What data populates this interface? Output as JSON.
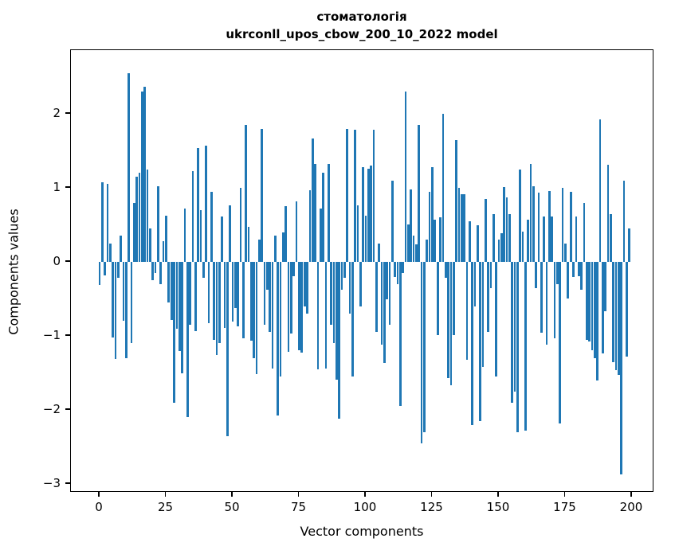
{
  "chart_data": {
    "type": "bar",
    "title_lines": [
      "стоматологія",
      "ukrconll_upos_cbow_200_10_2022 model"
    ],
    "xlabel": "Vector components",
    "ylabel": "Components values",
    "x_ticks": [
      0,
      25,
      50,
      75,
      100,
      125,
      150,
      175,
      200
    ],
    "y_ticks": [
      2,
      1,
      0,
      -1,
      -2,
      -3
    ],
    "xlim": [
      -10.8,
      208.4
    ],
    "ylim": [
      -3.12,
      2.86
    ],
    "grid": false,
    "legend": "none",
    "bar_color": "#1f77b4",
    "n_components": 200,
    "values": [
      -0.31,
      1.07,
      -0.18,
      1.05,
      0.25,
      -1.02,
      -1.31,
      -0.22,
      0.35,
      -0.8,
      -1.3,
      2.55,
      -1.1,
      0.8,
      1.15,
      1.2,
      2.3,
      2.37,
      1.25,
      0.45,
      -0.25,
      -0.15,
      1.02,
      -0.3,
      0.28,
      0.62,
      -0.55,
      -0.78,
      -1.9,
      -0.9,
      -1.2,
      -1.5,
      0.72,
      -2.1,
      -0.85,
      1.23,
      -0.94,
      1.54,
      0.7,
      -0.22,
      1.57,
      -0.83,
      0.95,
      -1.05,
      -1.26,
      -1.1,
      0.61,
      -0.89,
      -2.35,
      0.76,
      -0.81,
      -0.62,
      -0.87,
      1.0,
      -1.03,
      1.85,
      0.47,
      -1.06,
      -1.3,
      -1.52,
      0.3,
      1.8,
      -0.85,
      -0.38,
      -0.95,
      -1.44,
      0.35,
      -2.08,
      -1.55,
      0.4,
      0.75,
      -1.21,
      -0.97,
      -0.19,
      0.82,
      -1.19,
      -1.23,
      -0.6,
      -0.7,
      0.97,
      1.67,
      1.32,
      -1.45,
      0.72,
      1.2,
      -1.44,
      1.32,
      -0.85,
      -1.1,
      -1.59,
      -2.12,
      -0.38,
      -0.22,
      1.8,
      -0.7,
      -1.55,
      1.78,
      0.76,
      -0.6,
      1.28,
      0.62,
      1.26,
      1.3,
      1.78,
      -0.95,
      0.25,
      -1.12,
      -1.37,
      -0.5,
      -0.85,
      1.1,
      -0.2,
      -0.3,
      -1.95,
      -0.15,
      2.3,
      0.51,
      0.98,
      0.35,
      0.24,
      1.85,
      -2.45,
      -2.3,
      0.3,
      0.95,
      1.28,
      0.57,
      -0.99,
      0.6,
      2.0,
      -0.22,
      -1.57,
      -1.67,
      -0.99,
      1.65,
      1.0,
      0.91,
      0.91,
      -1.32,
      0.55,
      -2.2,
      -0.6,
      0.49,
      -2.15,
      -1.42,
      0.85,
      -0.95,
      -0.35,
      0.64,
      -1.55,
      0.3,
      0.39,
      1.01,
      0.87,
      0.64,
      -1.9,
      -1.75,
      -2.3,
      1.25,
      0.41,
      -2.28,
      0.57,
      1.32,
      1.02,
      -0.35,
      0.94,
      -0.96,
      0.61,
      -1.12,
      0.96,
      0.61,
      -1.03,
      -0.3,
      -2.18,
      1.0,
      0.25,
      -0.49,
      0.95,
      -0.2,
      0.61,
      -0.19,
      -0.38,
      0.8,
      -1.05,
      -1.08,
      -1.19,
      -1.3,
      -1.6,
      1.92,
      -1.24,
      -0.67,
      1.31,
      0.65,
      -1.35,
      -1.46,
      -1.53,
      -2.87,
      1.1,
      -1.28,
      0.45
    ]
  }
}
